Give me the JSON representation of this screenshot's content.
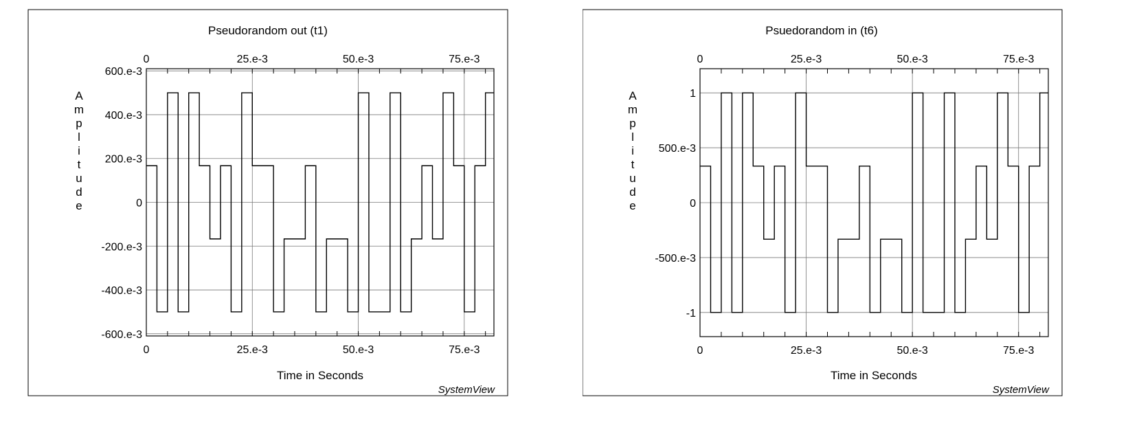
{
  "chart_data": [
    {
      "type": "line",
      "title": "Pseudorandom out (t1)",
      "xlabel": "Time in Seconds",
      "ylabel": "Amplitude",
      "watermark": "SystemView",
      "xlim": [
        0,
        0.082
      ],
      "ylim": [
        -0.61,
        0.61
      ],
      "x_ticks": [
        0,
        0.025,
        0.05,
        0.075
      ],
      "x_tick_labels": [
        "0",
        "25.e-3",
        "50.e-3",
        "75.e-3"
      ],
      "y_ticks": [
        0.6,
        0.4,
        0.2,
        0,
        -0.2,
        -0.4,
        -0.6
      ],
      "y_tick_labels": [
        "600.e-3",
        "400.e-3",
        "200.e-3",
        "0",
        "-200.e-3",
        "-400.e-3",
        "-600.e-3"
      ],
      "grid": true,
      "line_color": "#000000",
      "series": [
        {
          "x": [
            0,
            0.0025,
            0.0025,
            0.005,
            0.005,
            0.0075,
            0.0075,
            0.01,
            0.01,
            0.0125,
            0.0125,
            0.015,
            0.015,
            0.0175,
            0.0175,
            0.02,
            0.02,
            0.0225,
            0.0225,
            0.025,
            0.025,
            0.03,
            0.03,
            0.0325,
            0.0325,
            0.0375,
            0.0375,
            0.04,
            0.04,
            0.0425,
            0.0425,
            0.0475,
            0.0475,
            0.05,
            0.05,
            0.0525,
            0.0525,
            0.0575,
            0.0575,
            0.06,
            0.06,
            0.0625,
            0.0625,
            0.065,
            0.065,
            0.0675,
            0.0675,
            0.07,
            0.07,
            0.0725,
            0.0725,
            0.075,
            0.075,
            0.0775,
            0.0775,
            0.08,
            0.08,
            0.082
          ],
          "y": [
            0.167,
            0.167,
            -0.5,
            -0.5,
            0.5,
            0.5,
            -0.5,
            -0.5,
            0.5,
            0.5,
            0.167,
            0.167,
            -0.167,
            -0.167,
            0.167,
            0.167,
            -0.5,
            -0.5,
            0.5,
            0.5,
            0.167,
            0.167,
            -0.5,
            -0.5,
            -0.167,
            -0.167,
            0.167,
            0.167,
            -0.5,
            -0.5,
            -0.167,
            -0.167,
            -0.5,
            -0.5,
            0.5,
            0.5,
            -0.5,
            -0.5,
            0.5,
            0.5,
            -0.5,
            -0.5,
            -0.167,
            -0.167,
            0.167,
            0.167,
            -0.167,
            -0.167,
            0.5,
            0.5,
            0.167,
            0.167,
            -0.5,
            -0.5,
            0.167,
            0.167,
            0.5,
            0.5
          ]
        }
      ]
    },
    {
      "type": "line",
      "title": "Psuedorandom in (t6)",
      "xlabel": "Time in Seconds",
      "ylabel": "Amplitude",
      "watermark": "SystemView",
      "xlim": [
        0,
        0.082
      ],
      "ylim": [
        -1.22,
        1.22
      ],
      "x_ticks": [
        0,
        0.025,
        0.05,
        0.075
      ],
      "x_tick_labels": [
        "0",
        "25.e-3",
        "50.e-3",
        "75.e-3"
      ],
      "y_ticks": [
        1,
        0.5,
        0,
        -0.5,
        -1
      ],
      "y_tick_labels": [
        "1",
        "500.e-3",
        "0",
        "-500.e-3",
        "-1"
      ],
      "grid": true,
      "line_color": "#000000",
      "series": [
        {
          "x": [
            0,
            0.0025,
            0.0025,
            0.005,
            0.005,
            0.0075,
            0.0075,
            0.01,
            0.01,
            0.0125,
            0.0125,
            0.015,
            0.015,
            0.0175,
            0.0175,
            0.02,
            0.02,
            0.0225,
            0.0225,
            0.025,
            0.025,
            0.03,
            0.03,
            0.0325,
            0.0325,
            0.0375,
            0.0375,
            0.04,
            0.04,
            0.0425,
            0.0425,
            0.0475,
            0.0475,
            0.05,
            0.05,
            0.0525,
            0.0525,
            0.0575,
            0.0575,
            0.06,
            0.06,
            0.0625,
            0.0625,
            0.065,
            0.065,
            0.0675,
            0.0675,
            0.07,
            0.07,
            0.0725,
            0.0725,
            0.075,
            0.075,
            0.0775,
            0.0775,
            0.08,
            0.08,
            0.082
          ],
          "y": [
            0.333,
            0.333,
            -1,
            -1,
            1,
            1,
            -1,
            -1,
            1,
            1,
            0.333,
            0.333,
            -0.333,
            -0.333,
            0.333,
            0.333,
            -1,
            -1,
            1,
            1,
            0.333,
            0.333,
            -1,
            -1,
            -0.333,
            -0.333,
            0.333,
            0.333,
            -1,
            -1,
            -0.333,
            -0.333,
            -1,
            -1,
            1,
            1,
            -1,
            -1,
            1,
            1,
            -1,
            -1,
            -0.333,
            -0.333,
            0.333,
            0.333,
            -0.333,
            -0.333,
            1,
            1,
            0.333,
            0.333,
            -1,
            -1,
            0.333,
            0.333,
            1,
            1
          ]
        }
      ]
    }
  ]
}
